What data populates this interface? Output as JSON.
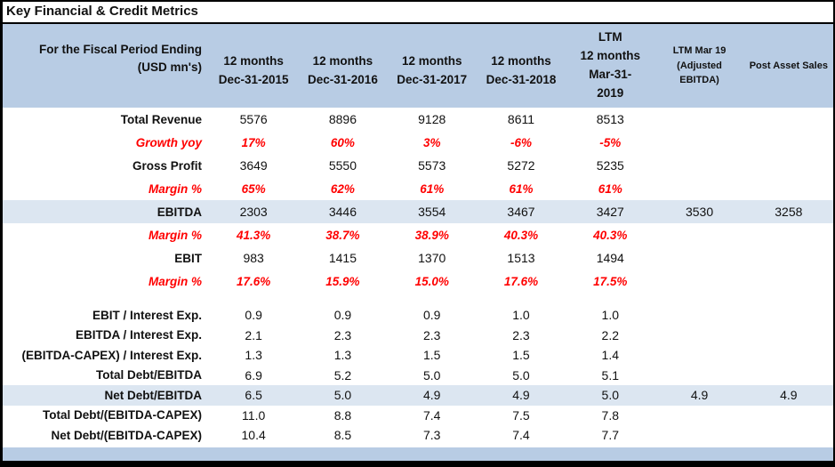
{
  "title": "Key Financial & Credit Metrics",
  "colors": {
    "header_bg": "#b8cce4",
    "highlight_bg": "#dce6f1",
    "negative_red": "#ff0000",
    "border": "#000000"
  },
  "table": {
    "label_header": {
      "line1": "For the Fiscal Period Ending",
      "line2": "(USD mn's)"
    },
    "columns": [
      {
        "lines": [
          "12 months",
          "Dec-31-2015"
        ],
        "small": false
      },
      {
        "lines": [
          "12 months",
          "Dec-31-2016"
        ],
        "small": false
      },
      {
        "lines": [
          "12 months",
          "Dec-31-2017"
        ],
        "small": false
      },
      {
        "lines": [
          "12 months",
          "Dec-31-2018"
        ],
        "small": false
      },
      {
        "lines": [
          "LTM",
          "12 months",
          "Mar-31-",
          "2019"
        ],
        "small": false
      },
      {
        "lines": [
          "LTM Mar 19",
          "(Adjusted",
          "EBITDA)"
        ],
        "small": true
      },
      {
        "lines": [
          "Post Asset Sales"
        ],
        "small": true
      }
    ],
    "rows": [
      {
        "label": "Total Revenue",
        "style": "bold",
        "highlight": false,
        "values": [
          "5576",
          "8896",
          "9128",
          "8611",
          "8513",
          "",
          ""
        ]
      },
      {
        "label": "Growth yoy",
        "style": "red-italic",
        "highlight": false,
        "values": [
          "17%",
          "60%",
          "3%",
          "-6%",
          "-5%",
          "",
          ""
        ]
      },
      {
        "label": "Gross Profit",
        "style": "bold",
        "highlight": false,
        "values": [
          "3649",
          "5550",
          "5573",
          "5272",
          "5235",
          "",
          ""
        ]
      },
      {
        "label": "Margin %",
        "style": "red-italic",
        "highlight": false,
        "values": [
          "65%",
          "62%",
          "61%",
          "61%",
          "61%",
          "",
          ""
        ]
      },
      {
        "label": "EBITDA",
        "style": "bold",
        "highlight": true,
        "values": [
          "2303",
          "3446",
          "3554",
          "3467",
          "3427",
          "3530",
          "3258"
        ]
      },
      {
        "label": "Margin %",
        "style": "red-italic",
        "highlight": false,
        "values": [
          "41.3%",
          "38.7%",
          "38.9%",
          "40.3%",
          "40.3%",
          "",
          ""
        ]
      },
      {
        "label": "EBIT",
        "style": "bold",
        "highlight": false,
        "values": [
          "983",
          "1415",
          "1370",
          "1513",
          "1494",
          "",
          ""
        ]
      },
      {
        "label": "Margin %",
        "style": "red-italic",
        "highlight": false,
        "values": [
          "17.6%",
          "15.9%",
          "15.0%",
          "17.6%",
          "17.5%",
          "",
          ""
        ]
      },
      {
        "label": "",
        "style": "spacer",
        "highlight": false,
        "values": [
          "",
          "",
          "",
          "",
          "",
          "",
          ""
        ]
      },
      {
        "label": "EBIT / Interest Exp.",
        "style": "bold",
        "highlight": false,
        "values": [
          "0.9",
          "0.9",
          "0.9",
          "1.0",
          "1.0",
          "",
          ""
        ]
      },
      {
        "label": "EBITDA / Interest Exp.",
        "style": "bold",
        "highlight": false,
        "values": [
          "2.1",
          "2.3",
          "2.3",
          "2.3",
          "2.2",
          "",
          ""
        ]
      },
      {
        "label": "(EBITDA-CAPEX) / Interest Exp.",
        "style": "bold",
        "highlight": false,
        "values": [
          "1.3",
          "1.3",
          "1.5",
          "1.5",
          "1.4",
          "",
          ""
        ]
      },
      {
        "label": "Total Debt/EBITDA",
        "style": "bold",
        "highlight": false,
        "values": [
          "6.9",
          "5.2",
          "5.0",
          "5.0",
          "5.1",
          "",
          ""
        ]
      },
      {
        "label": "Net Debt/EBITDA",
        "style": "bold",
        "highlight": true,
        "values": [
          "6.5",
          "5.0",
          "4.9",
          "4.9",
          "5.0",
          "4.9",
          "4.9"
        ]
      },
      {
        "label": "Total Debt/(EBITDA-CAPEX)",
        "style": "bold",
        "highlight": false,
        "values": [
          "11.0",
          "8.8",
          "7.4",
          "7.5",
          "7.8",
          "",
          ""
        ]
      },
      {
        "label": "Net Debt/(EBITDA-CAPEX)",
        "style": "bold",
        "highlight": false,
        "values": [
          "10.4",
          "8.5",
          "7.3",
          "7.4",
          "7.7",
          "",
          ""
        ]
      }
    ]
  }
}
